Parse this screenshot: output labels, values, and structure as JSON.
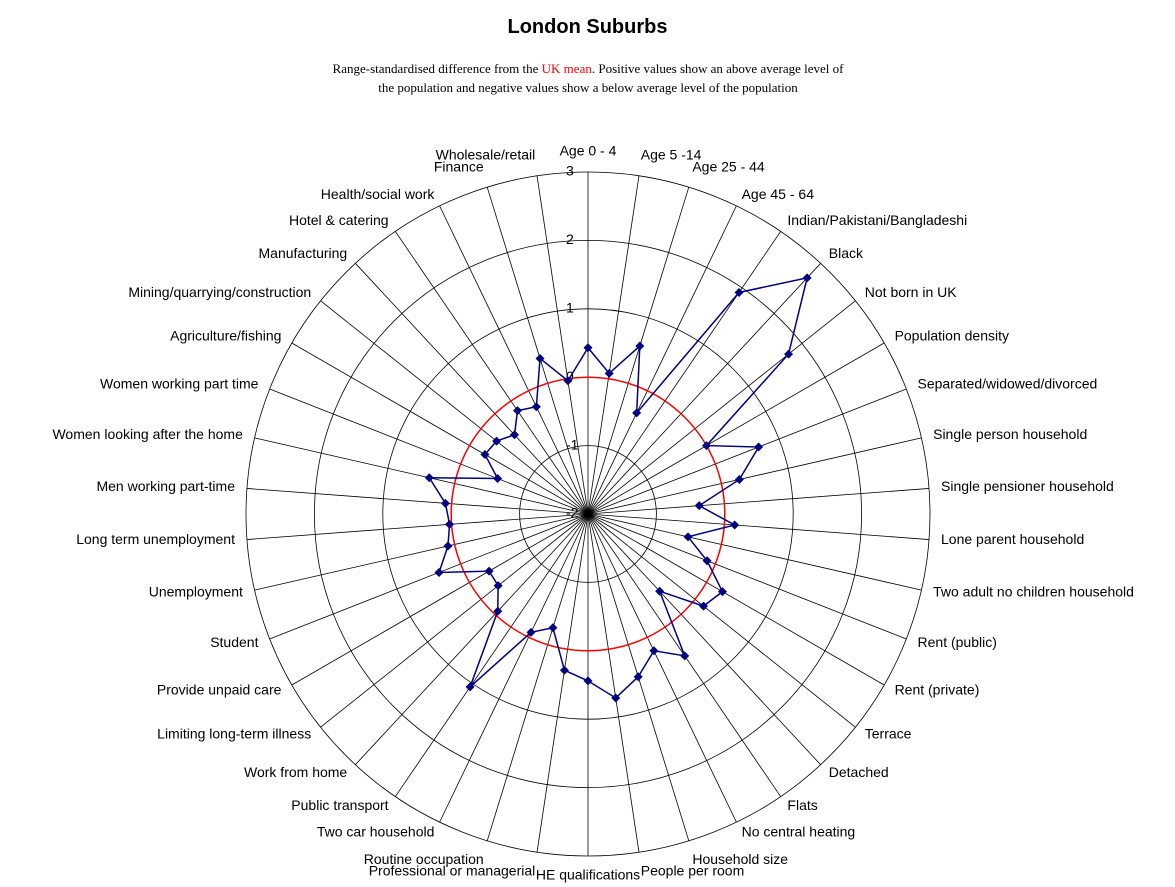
{
  "chart_data": {
    "type": "radar",
    "title": "London Suburbs",
    "subtitle": [
      "Range-standardised difference from the ",
      "UK mean",
      ". Positive values show an above average level of the population and negative values show a below average level of the population"
    ],
    "categories": [
      "Age 0 - 4",
      "Age 5 -14",
      "Age 25 - 44",
      "Age 45 - 64",
      "Indian/Pakistani/Bangladeshi",
      "Black",
      "Not born in UK",
      "Population density",
      "Separated/widowed/divorced",
      "Single person household",
      "Single pensioner household",
      "Lone parent household",
      "Two adult no children household",
      "Rent (public)",
      "Rent (private)",
      "Terrace",
      "Detached",
      "Flats",
      "No central heating",
      "Household size",
      "People per room",
      "HE qualifications",
      "Professional or managerial",
      "Routine occupation",
      "Two car household",
      "Public transport",
      "Work from home",
      "Limiting long-term illness",
      "Provide unpaid care",
      "Student",
      "Unemployment",
      "Long term unemployment",
      "Men working part-time",
      "Women looking after the home",
      "Women working part time",
      "Agriculture/fishing",
      "Mining/quarrying/construction",
      "Manufacturing",
      "Hotel & catering",
      "Health/social work",
      "Finance",
      "Wholesale/retail"
    ],
    "series": [
      {
        "color": "#000080",
        "values": [
          0.43,
          0.08,
          0.57,
          -0.36,
          1.92,
          2.71,
          1.75,
          0.0,
          0.68,
          0.27,
          -0.37,
          0.15,
          -0.5,
          -0.13,
          0.27,
          0.16,
          -0.46,
          0.51,
          0.22,
          0.49,
          0.72,
          0.44,
          0.31,
          -0.26,
          -0.08,
          1.06,
          -0.06,
          -0.32,
          -0.33,
          0.34,
          0.1,
          0.03,
          0.09,
          0.38,
          -0.58,
          -0.26,
          -0.29,
          -0.42,
          -0.17,
          -0.26,
          0.38,
          -0.03
        ]
      }
    ],
    "rlim": [
      -2,
      3
    ],
    "rticks": [
      -2,
      -1,
      0,
      1,
      2,
      3
    ],
    "reference": {
      "value": 0,
      "color": "#ff0000"
    },
    "grid": true
  }
}
